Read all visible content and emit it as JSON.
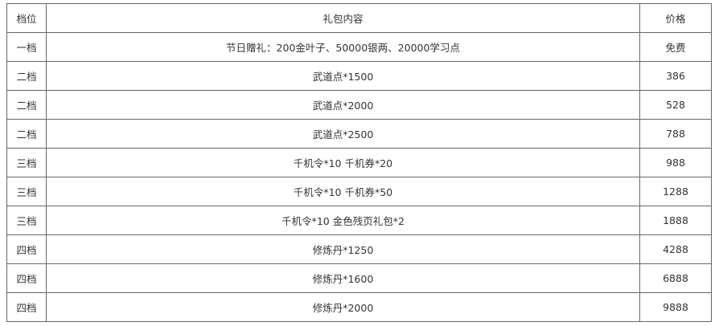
{
  "table": {
    "headers": [
      "档位",
      "礼包内容",
      "价格"
    ],
    "rows": [
      [
        "一档",
        "节日赠礼：200金叶子、50000银两、20000学习点",
        "免费"
      ],
      [
        "二档",
        "武道点*1500",
        "386"
      ],
      [
        "二档",
        "武道点*2000",
        "528"
      ],
      [
        "二档",
        "武道点*2500",
        "788"
      ],
      [
        "三档",
        "千机令*10 千机券*20",
        "988"
      ],
      [
        "三档",
        "千机令*10 千机券*50",
        "1288"
      ],
      [
        "三档",
        "千机令*10 金色残页礼包*2",
        "1888"
      ],
      [
        "四档",
        "修炼丹*1250",
        "4288"
      ],
      [
        "四档",
        "修炼丹*1600",
        "6888"
      ],
      [
        "四档",
        "修炼丹*2000",
        "9888"
      ]
    ]
  }
}
